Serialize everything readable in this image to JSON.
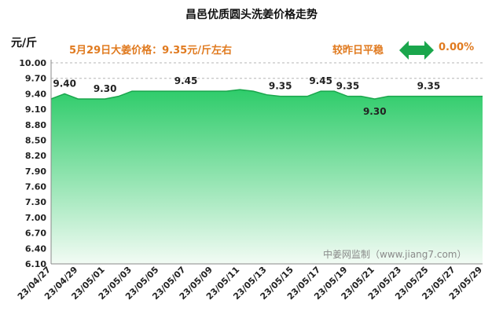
{
  "title": "昌邑优质圆头洗姜价格走势",
  "unit": "元/斤",
  "price_note": "5月29日大姜价格：9.35元/斤左右",
  "compare_label": "较昨日平稳",
  "change_value": "0.00%",
  "trend_icon": "double-arrow-icon",
  "watermark": "中姜网监制（www.jiang7.com）",
  "colors": {
    "accent": "#e07a1f",
    "fill_top": "#2ecc6a",
    "fill_bottom": "#f2fbf4",
    "line": "#1aa64c",
    "arrow": "#1aa64c"
  },
  "chart_data": {
    "type": "area",
    "title": "昌邑优质圆头洗姜价格走势",
    "ylabel": "元/斤",
    "xlabel": "",
    "ylim": [
      6.1,
      10.0
    ],
    "yticks": [
      "10.00",
      "9.70",
      "9.40",
      "9.10",
      "8.80",
      "8.50",
      "8.20",
      "7.90",
      "7.60",
      "7.30",
      "7.00",
      "6.70",
      "6.40",
      "6.10"
    ],
    "x_tick_labels": [
      "23/04/27",
      "23/04/29",
      "23/05/01",
      "23/05/03",
      "23/05/05",
      "23/05/07",
      "23/05/09",
      "23/05/11",
      "23/05/13",
      "23/05/15",
      "23/05/17",
      "23/05/19",
      "23/05/21",
      "23/05/23",
      "23/05/25",
      "23/05/27",
      "23/05/29"
    ],
    "x": [
      "23/04/27",
      "23/04/28",
      "23/04/29",
      "23/04/30",
      "23/05/01",
      "23/05/02",
      "23/05/03",
      "23/05/04",
      "23/05/05",
      "23/05/06",
      "23/05/07",
      "23/05/08",
      "23/05/09",
      "23/05/10",
      "23/05/11",
      "23/05/12",
      "23/05/13",
      "23/05/14",
      "23/05/15",
      "23/05/16",
      "23/05/17",
      "23/05/18",
      "23/05/19",
      "23/05/20",
      "23/05/21",
      "23/05/22",
      "23/05/23",
      "23/05/24",
      "23/05/25",
      "23/05/26",
      "23/05/27",
      "23/05/28",
      "23/05/29"
    ],
    "values": [
      9.3,
      9.4,
      9.3,
      9.3,
      9.3,
      9.35,
      9.45,
      9.45,
      9.45,
      9.45,
      9.45,
      9.45,
      9.45,
      9.45,
      9.48,
      9.45,
      9.38,
      9.35,
      9.35,
      9.35,
      9.45,
      9.45,
      9.35,
      9.35,
      9.3,
      9.35,
      9.35,
      9.35,
      9.35,
      9.35,
      9.35,
      9.35,
      9.35
    ],
    "data_labels": [
      {
        "x": "23/04/28",
        "text": "9.40"
      },
      {
        "x": "23/05/01",
        "text": "9.30"
      },
      {
        "x": "23/05/07",
        "text": "9.45"
      },
      {
        "x": "23/05/14",
        "text": "9.35"
      },
      {
        "x": "23/05/17",
        "text": "9.45"
      },
      {
        "x": "23/05/19",
        "text": "9.35"
      },
      {
        "x": "23/05/21",
        "text": "9.30"
      },
      {
        "x": "23/05/25",
        "text": "9.35"
      }
    ],
    "dashed_gridlines": [
      "10.00",
      "9.70"
    ]
  }
}
